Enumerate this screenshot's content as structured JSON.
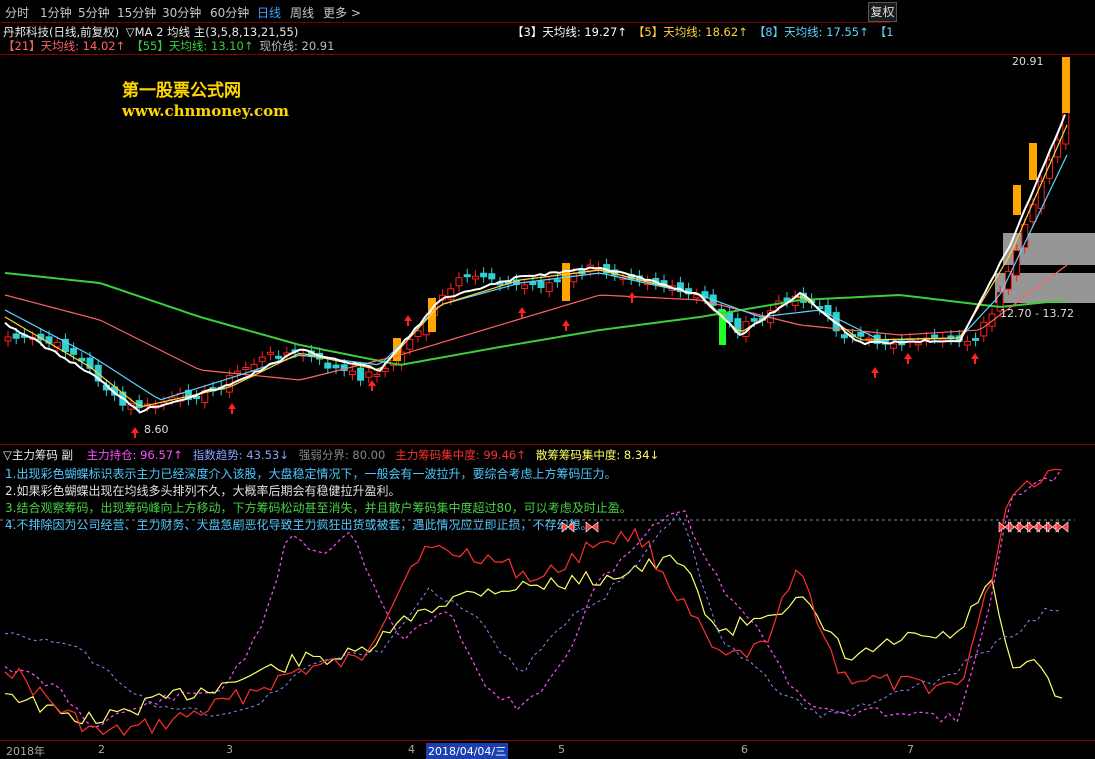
{
  "toolbar": {
    "tabs": [
      "分时",
      "1分钟",
      "5分钟",
      "15分钟",
      "30分钟",
      "60分钟",
      "日线",
      "周线",
      "更多 >"
    ],
    "active_tab": "日线",
    "right_button": "复权"
  },
  "header": {
    "stock": "丹邦科技(日线,前复权)",
    "indicator": "▽MA 2 均线 主(3,5,8,13,21,55)",
    "ma_items": [
      {
        "label": "【3】天均线: ",
        "value": "19.27",
        "arrow": "↑",
        "color": "#ffffff"
      },
      {
        "label": "【5】天均线: ",
        "value": "18.62",
        "arrow": "↑",
        "color": "#ffd23c"
      },
      {
        "label": "【8】天均线: ",
        "value": "17.55",
        "arrow": "↑",
        "color": "#5bd6ff"
      },
      {
        "label": "【1",
        "value": "",
        "arrow": "",
        "color": "#5bd6ff"
      }
    ],
    "ma_items2": [
      {
        "label": "【21】天均线: ",
        "value": "14.02",
        "arrow": "↑",
        "color": "#ff6464"
      },
      {
        "label": "【55】天均线: ",
        "value": "13.10",
        "arrow": "↑",
        "color": "#3ccf3c"
      },
      {
        "label": "现价线: ",
        "value": "20.91",
        "arrow": "",
        "color": "#bbbbbb"
      }
    ]
  },
  "watermark": {
    "line1": "第一股票公式网",
    "line2": "www.chnmoney.com"
  },
  "price_labels": {
    "high": "20.91",
    "low": "8.60",
    "band": "12.70 - 13.72"
  },
  "sub_header": {
    "title": "▽主力筹码 副",
    "items": [
      {
        "label": "主力持仓: ",
        "value": "96.57",
        "arrow": "↑",
        "color": "#ff50ff"
      },
      {
        "label": "指数趋势: ",
        "value": "43.53",
        "arrow": "↓",
        "color": "#8aa0ff"
      },
      {
        "label": "强弱分界: ",
        "value": "80.00",
        "arrow": "",
        "color": "#888888"
      },
      {
        "label": "主力筹码集中度: ",
        "value": "99.46",
        "arrow": "↑",
        "color": "#ff3030"
      },
      {
        "label": "散筹筹码集中度: ",
        "value": "8.34",
        "arrow": "↓",
        "color": "#ffff66"
      }
    ]
  },
  "notes": [
    {
      "text": "1.出现彩色蝴蝶标识表示主力已经深度介入该股，大盘稳定情况下，一般会有一波拉升，要综合考虑上方筹码压力。",
      "color": "#4fc8ff"
    },
    {
      "text": "2.如果彩色蝴蝶出现在均线多头排列不久，大概率后期会有稳健拉升盈利。",
      "color": "#e0e0e0"
    },
    {
      "text": "3.结合观察筹码，出现筹码峰向上方移动，下方筹码松动甚至消失，并且散户筹码集中度超过80，可以考虑及时止盈。",
      "color": "#46d046"
    },
    {
      "text": "4.不排除因为公司经营、主力财务、大盘急剧恶化导致主力疯狂出货或被套，遇此情况应立即止损，不存幻想。",
      "color": "#4fc8ff"
    }
  ],
  "bottom": {
    "labels": [
      "2018年",
      "2",
      "3",
      "4",
      "5",
      "6",
      "7"
    ],
    "selected": "2018/04/04/三"
  },
  "colors": {
    "up": "#ff2020",
    "down": "#30d0d0",
    "ma55": "#3ccf3c",
    "ma21": "#ff6464",
    "ma3": "#ffffff",
    "ma5": "#ffd23c",
    "ma8": "#5bd6ff"
  }
}
